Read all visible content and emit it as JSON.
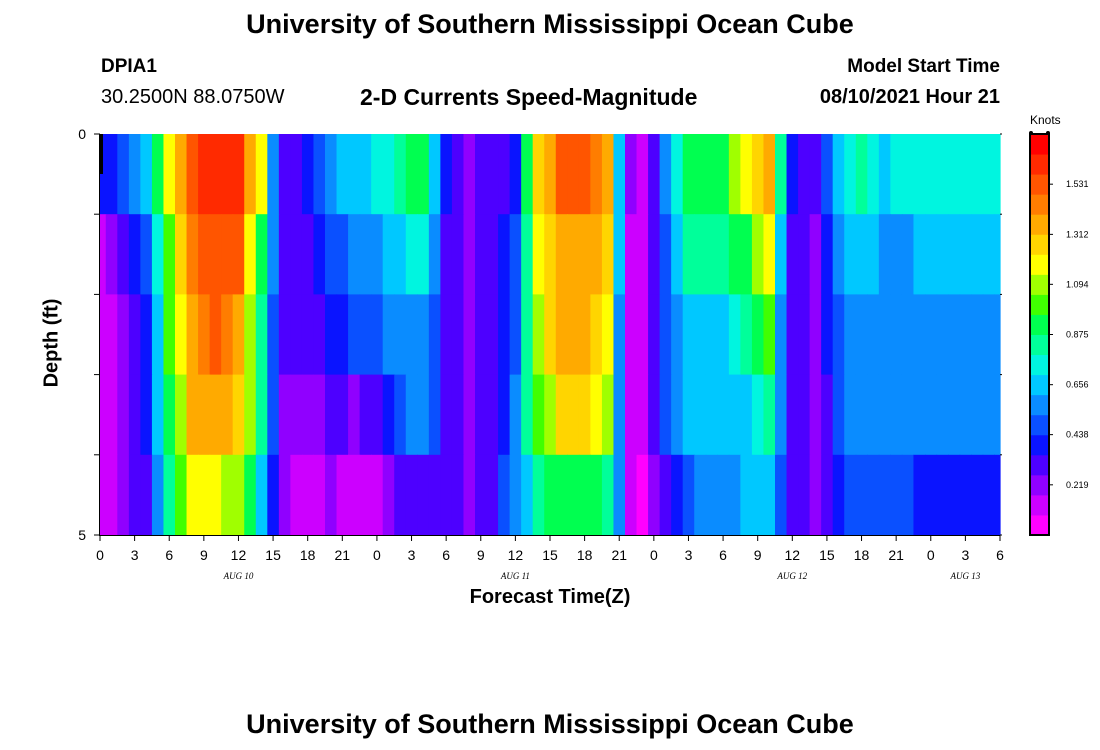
{
  "header": {
    "title_top": "University of Southern Mississippi Ocean Cube",
    "title_bottom": "University of Southern Mississippi Ocean Cube",
    "station": "DPIA1",
    "latlon": "30.2500N  88.0750W",
    "subtitle": "2-D Currents Speed-Magnitude",
    "model_start_label": "Model Start Time",
    "model_start_value": "08/10/2021 Hour 21"
  },
  "colors": {
    "palette": [
      "#ff00ff",
      "#cc00ff",
      "#9000ff",
      "#4d00ff",
      "#0a14ff",
      "#0a50ff",
      "#0a8cff",
      "#00c8ff",
      "#00f5e0",
      "#00ff9a",
      "#00ff50",
      "#40ff00",
      "#a0ff00",
      "#ffff00",
      "#ffd500",
      "#ffaa00",
      "#ff7d00",
      "#ff5500",
      "#ff2a00",
      "#ff0000"
    ]
  },
  "chart_data": {
    "type": "heatmap",
    "title": "2-D Currents Speed-Magnitude",
    "xlabel": "Forecast Time(Z)",
    "ylabel": "Depth (ft)",
    "units": "Knots",
    "ylim": [
      0,
      5
    ],
    "vmin": 0,
    "vmax": 1.75,
    "ytick_labels": [
      "0",
      "5"
    ],
    "x_tick_labels": [
      "0",
      "3",
      "6",
      "9",
      "12",
      "15",
      "18",
      "21",
      "0",
      "3",
      "6",
      "9",
      "12",
      "15",
      "18",
      "21",
      "0",
      "3",
      "6",
      "9",
      "12",
      "15",
      "18",
      "21",
      "0",
      "3",
      "6"
    ],
    "date_labels": [
      {
        "label": "AUG 10",
        "hour": 12
      },
      {
        "label": "AUG 11",
        "hour": 36
      },
      {
        "label": "AUG 12",
        "hour": 60
      },
      {
        "label": "AUG 13",
        "hour": 75
      }
    ],
    "colorbar_ticks": [
      "0.219",
      "0.438",
      "0.656",
      "0.875",
      "1.094",
      "1.312",
      "1.531"
    ],
    "colorbar_tick_values": [
      0.219,
      0.438,
      0.656,
      0.875,
      1.094,
      1.312,
      1.531
    ],
    "hours": 79,
    "depth_bins": [
      0,
      1,
      2,
      3,
      4
    ],
    "anchors": [
      {
        "h": 0,
        "d": [
          0.4,
          0.1,
          0.1,
          0.1,
          0.15
        ]
      },
      {
        "h": 2,
        "d": [
          0.45,
          0.3,
          0.2,
          0.2,
          0.2
        ]
      },
      {
        "h": 4,
        "d": [
          0.7,
          0.5,
          0.4,
          0.4,
          0.35
        ]
      },
      {
        "h": 6,
        "d": [
          1.2,
          1.0,
          1.0,
          0.9,
          0.8
        ]
      },
      {
        "h": 8,
        "d": [
          1.55,
          1.45,
          1.4,
          1.35,
          1.15
        ]
      },
      {
        "h": 10,
        "d": [
          1.65,
          1.55,
          1.5,
          1.4,
          1.2
        ]
      },
      {
        "h": 12,
        "d": [
          1.6,
          1.5,
          1.4,
          1.3,
          1.05
        ]
      },
      {
        "h": 14,
        "d": [
          1.2,
          0.9,
          0.85,
          0.85,
          0.7
        ]
      },
      {
        "h": 15,
        "d": [
          0.55,
          0.6,
          0.5,
          0.45,
          0.4
        ]
      },
      {
        "h": 16,
        "d": [
          0.3,
          0.3,
          0.3,
          0.2,
          0.2
        ]
      },
      {
        "h": 18,
        "d": [
          0.4,
          0.3,
          0.3,
          0.2,
          0.1
        ]
      },
      {
        "h": 20,
        "d": [
          0.6,
          0.45,
          0.38,
          0.3,
          0.2
        ]
      },
      {
        "h": 22,
        "d": [
          0.65,
          0.55,
          0.45,
          0.25,
          0.1
        ]
      },
      {
        "h": 24,
        "d": [
          0.72,
          0.56,
          0.5,
          0.3,
          0.15
        ]
      },
      {
        "h": 26,
        "d": [
          0.85,
          0.7,
          0.56,
          0.5,
          0.3
        ]
      },
      {
        "h": 28,
        "d": [
          0.9,
          0.75,
          0.6,
          0.55,
          0.35
        ]
      },
      {
        "h": 30,
        "d": [
          0.4,
          0.35,
          0.35,
          0.35,
          0.3
        ]
      },
      {
        "h": 32,
        "d": [
          0.25,
          0.25,
          0.25,
          0.25,
          0.25
        ]
      },
      {
        "h": 34,
        "d": [
          0.3,
          0.3,
          0.3,
          0.3,
          0.35
        ]
      },
      {
        "h": 36,
        "d": [
          0.4,
          0.45,
          0.5,
          0.55,
          0.55
        ]
      },
      {
        "h": 37,
        "d": [
          0.9,
          0.85,
          0.85,
          0.85,
          0.7
        ]
      },
      {
        "h": 38,
        "d": [
          1.3,
          1.2,
          1.1,
          1.0,
          0.85
        ]
      },
      {
        "h": 40,
        "d": [
          1.5,
          1.4,
          1.35,
          1.25,
          0.95
        ]
      },
      {
        "h": 42,
        "d": [
          1.5,
          1.4,
          1.35,
          1.25,
          0.92
        ]
      },
      {
        "h": 44,
        "d": [
          1.4,
          1.3,
          1.2,
          1.1,
          0.85
        ]
      },
      {
        "h": 45,
        "d": [
          0.7,
          0.65,
          0.6,
          0.6,
          0.55
        ]
      },
      {
        "h": 46,
        "d": [
          0.2,
          0.15,
          0.15,
          0.15,
          0.1
        ]
      },
      {
        "h": 47,
        "d": [
          0.1,
          0.1,
          0.1,
          0.1,
          0.05
        ]
      },
      {
        "h": 48,
        "d": [
          0.3,
          0.3,
          0.3,
          0.3,
          0.2
        ]
      },
      {
        "h": 49,
        "d": [
          0.6,
          0.45,
          0.45,
          0.45,
          0.35
        ]
      },
      {
        "h": 51,
        "d": [
          0.9,
          0.8,
          0.7,
          0.62,
          0.52
        ]
      },
      {
        "h": 54,
        "d": [
          0.95,
          0.85,
          0.7,
          0.62,
          0.55
        ]
      },
      {
        "h": 56,
        "d": [
          1.2,
          0.9,
          0.85,
          0.7,
          0.62
        ]
      },
      {
        "h": 58,
        "d": [
          1.35,
          1.2,
          1.0,
          0.85,
          0.7
        ]
      },
      {
        "h": 59,
        "d": [
          0.85,
          0.7,
          0.6,
          0.55,
          0.5
        ]
      },
      {
        "h": 60,
        "d": [
          0.4,
          0.3,
          0.3,
          0.3,
          0.3
        ]
      },
      {
        "h": 62,
        "d": [
          0.3,
          0.25,
          0.25,
          0.25,
          0.25
        ]
      },
      {
        "h": 64,
        "d": [
          0.65,
          0.6,
          0.5,
          0.45,
          0.4
        ]
      },
      {
        "h": 66,
        "d": [
          0.8,
          0.65,
          0.6,
          0.6,
          0.5
        ]
      },
      {
        "h": 68,
        "d": [
          0.7,
          0.6,
          0.55,
          0.55,
          0.45
        ]
      },
      {
        "h": 78,
        "d": [
          0.75,
          0.65,
          0.6,
          0.55,
          0.4
        ]
      }
    ]
  }
}
